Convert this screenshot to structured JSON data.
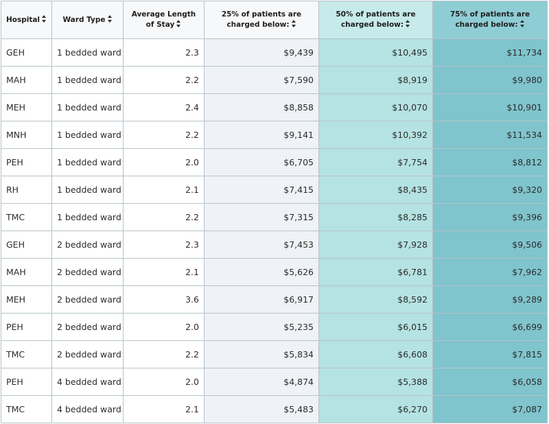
{
  "table": {
    "columns": [
      {
        "label": "Hospital"
      },
      {
        "label": "Ward Type"
      },
      {
        "label": "Average Length of Stay"
      },
      {
        "label": "25% of patients are charged below:"
      },
      {
        "label": "50% of patients are charged below:"
      },
      {
        "label": "75% of patients are charged below:"
      }
    ],
    "rows": [
      {
        "hospital": "GEH",
        "ward": "1 bedded ward",
        "alos": "2.3",
        "p25": "$9,439",
        "p50": "$10,495",
        "p75": "$11,734"
      },
      {
        "hospital": "MAH",
        "ward": "1 bedded ward",
        "alos": "2.2",
        "p25": "$7,590",
        "p50": "$8,919",
        "p75": "$9,980"
      },
      {
        "hospital": "MEH",
        "ward": "1 bedded ward",
        "alos": "2.4",
        "p25": "$8,858",
        "p50": "$10,070",
        "p75": "$10,901"
      },
      {
        "hospital": "MNH",
        "ward": "1 bedded ward",
        "alos": "2.2",
        "p25": "$9,141",
        "p50": "$10,392",
        "p75": "$11,534"
      },
      {
        "hospital": "PEH",
        "ward": "1 bedded ward",
        "alos": "2.0",
        "p25": "$6,705",
        "p50": "$7,754",
        "p75": "$8,812"
      },
      {
        "hospital": "RH",
        "ward": "1 bedded ward",
        "alos": "2.1",
        "p25": "$7,415",
        "p50": "$8,435",
        "p75": "$9,320"
      },
      {
        "hospital": "TMC",
        "ward": "1 bedded ward",
        "alos": "2.2",
        "p25": "$7,315",
        "p50": "$8,285",
        "p75": "$9,396"
      },
      {
        "hospital": "GEH",
        "ward": "2 bedded ward",
        "alos": "2.3",
        "p25": "$7,453",
        "p50": "$7,928",
        "p75": "$9,506"
      },
      {
        "hospital": "MAH",
        "ward": "2 bedded ward",
        "alos": "2.1",
        "p25": "$5,626",
        "p50": "$6,781",
        "p75": "$7,962"
      },
      {
        "hospital": "MEH",
        "ward": "2 bedded ward",
        "alos": "3.6",
        "p25": "$6,917",
        "p50": "$8,592",
        "p75": "$9,289"
      },
      {
        "hospital": "PEH",
        "ward": "2 bedded ward",
        "alos": "2.0",
        "p25": "$5,235",
        "p50": "$6,015",
        "p75": "$6,699"
      },
      {
        "hospital": "TMC",
        "ward": "2 bedded ward",
        "alos": "2.2",
        "p25": "$5,834",
        "p50": "$6,608",
        "p75": "$7,815"
      },
      {
        "hospital": "PEH",
        "ward": "4 bedded ward",
        "alos": "2.0",
        "p25": "$4,874",
        "p50": "$5,388",
        "p75": "$6,058"
      },
      {
        "hospital": "TMC",
        "ward": "4 bedded ward",
        "alos": "2.1",
        "p25": "$5,483",
        "p50": "$6,270",
        "p75": "$7,087"
      }
    ]
  }
}
